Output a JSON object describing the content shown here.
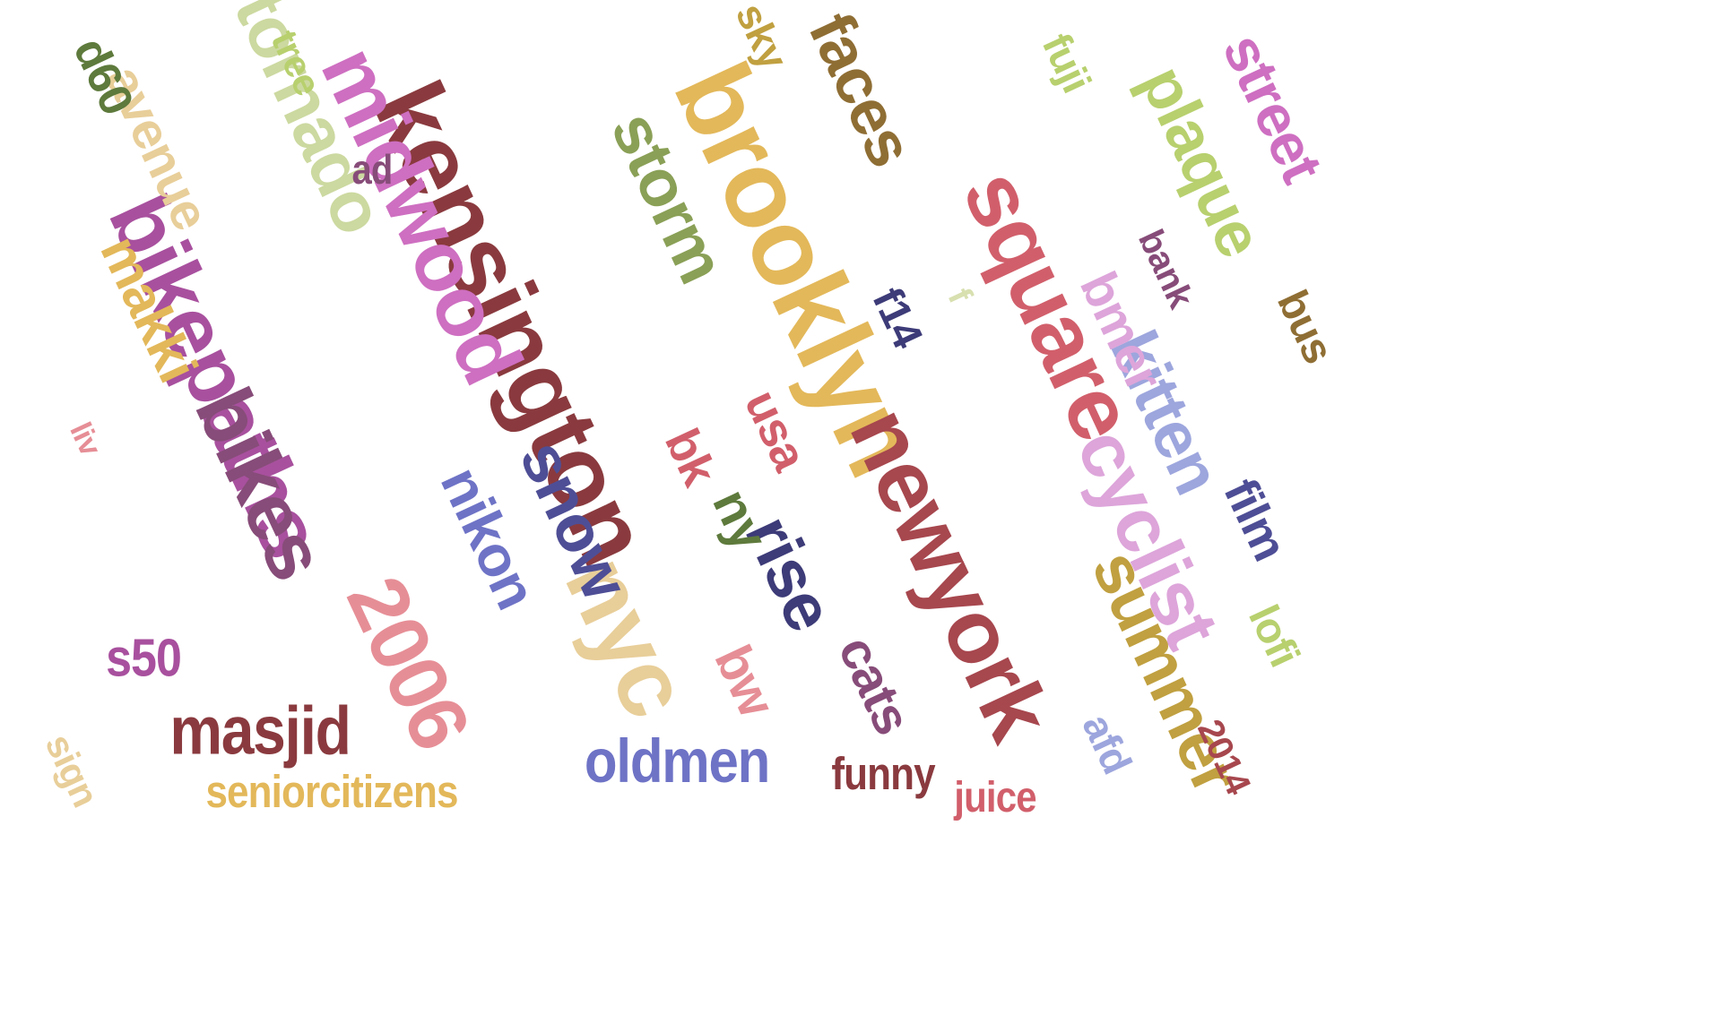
{
  "words": [
    {
      "text": "brooklyn",
      "color": "#E3B85A"
    },
    {
      "text": "kensington",
      "color": "#8A3A3E"
    },
    {
      "text": "newyork",
      "color": "#A7474E"
    },
    {
      "text": "square",
      "color": "#D15F6B"
    },
    {
      "text": "bikepaths",
      "color": "#A8509E"
    },
    {
      "text": "midwood",
      "color": "#CE6FC1"
    },
    {
      "text": "bikes",
      "color": "#874C79"
    },
    {
      "text": "nyc",
      "color": "#E8CE99"
    },
    {
      "text": "2006",
      "color": "#E68E96"
    },
    {
      "text": "tornado",
      "color": "#CCD9A0"
    },
    {
      "text": "cyclist",
      "color": "#DDA5DA"
    },
    {
      "text": "summer",
      "color": "#C0A040"
    },
    {
      "text": "kitten",
      "color": "#9DA6DD"
    },
    {
      "text": "storm",
      "color": "#8AA056"
    },
    {
      "text": "faces",
      "color": "#8F6E34"
    },
    {
      "text": "plaque",
      "color": "#B8D06E"
    },
    {
      "text": "street",
      "color": "#CE6FC1"
    },
    {
      "text": "snow",
      "color": "#4E4E96"
    },
    {
      "text": "nikon",
      "color": "#6E73C6"
    },
    {
      "text": "rise",
      "color": "#3D3B78"
    },
    {
      "text": "masjid",
      "color": "#8A3A3E"
    },
    {
      "text": "oldmen",
      "color": "#6E73C6"
    },
    {
      "text": "makki",
      "color": "#E3B85A"
    },
    {
      "text": "avenue",
      "color": "#E8CE99"
    },
    {
      "text": "cats",
      "color": "#874C79"
    },
    {
      "text": "s50",
      "color": "#A8509E"
    },
    {
      "text": "seniorcitizens",
      "color": "#E3B85A"
    },
    {
      "text": "usa",
      "color": "#D15F6B"
    },
    {
      "text": "bw",
      "color": "#E68E96"
    },
    {
      "text": "ny",
      "color": "#5E7A3C"
    },
    {
      "text": "bk",
      "color": "#D15F6B"
    },
    {
      "text": "d60",
      "color": "#5E7A3C"
    },
    {
      "text": "tree",
      "color": "#B8D06E"
    },
    {
      "text": "ad",
      "color": "#874C79"
    },
    {
      "text": "sky",
      "color": "#C0A040"
    },
    {
      "text": "fuji",
      "color": "#B8D06E"
    },
    {
      "text": "f14",
      "color": "#3D3B78"
    },
    {
      "text": "bank",
      "color": "#874C79"
    },
    {
      "text": "bmer",
      "color": "#DDA5DA"
    },
    {
      "text": "bus",
      "color": "#8F6E34"
    },
    {
      "text": "film",
      "color": "#4E4E96"
    },
    {
      "text": "lofi",
      "color": "#B8D06E"
    },
    {
      "text": "afd",
      "color": "#9DA6DD"
    },
    {
      "text": "2014",
      "color": "#A7474E"
    },
    {
      "text": "funny",
      "color": "#8A3A3E"
    },
    {
      "text": "juice",
      "color": "#D15F6B"
    },
    {
      "text": "sign",
      "color": "#E8CE99"
    },
    {
      "text": "liv",
      "color": "#E68E96"
    },
    {
      "text": "f",
      "color": "#D8E0B0"
    }
  ]
}
